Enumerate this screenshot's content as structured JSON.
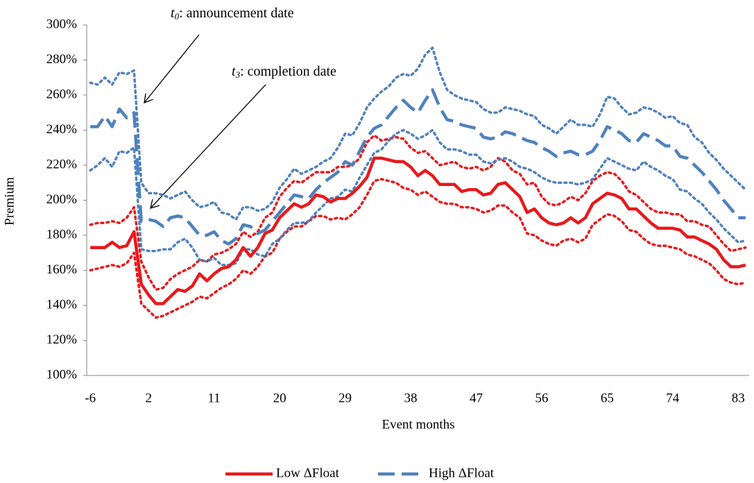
{
  "chart_data": {
    "type": "line",
    "y_label": "Premium",
    "x_label": "Event months",
    "annotations": [
      {
        "text": "t",
        "sub": "0",
        "rest": ": announcement date"
      },
      {
        "text": "t",
        "sub": "3",
        "rest": ": completion date"
      }
    ],
    "x": [
      -6,
      -5,
      -4,
      -3,
      -2,
      -1,
      0,
      1,
      2,
      3,
      4,
      5,
      6,
      7,
      8,
      9,
      10,
      11,
      12,
      13,
      14,
      15,
      16,
      17,
      18,
      19,
      20,
      21,
      22,
      23,
      24,
      25,
      26,
      27,
      28,
      29,
      30,
      31,
      32,
      33,
      34,
      35,
      36,
      37,
      38,
      39,
      40,
      41,
      42,
      43,
      44,
      45,
      46,
      47,
      48,
      49,
      50,
      51,
      52,
      53,
      54,
      55,
      56,
      57,
      58,
      59,
      60,
      61,
      62,
      63,
      64,
      65,
      66,
      67,
      68,
      69,
      70,
      71,
      72,
      73,
      74,
      75,
      76,
      77,
      78,
      79,
      80,
      81,
      82,
      83,
      84
    ],
    "xlim": [
      -6.5,
      84.5
    ],
    "xticks": [
      -6,
      2,
      11,
      20,
      29,
      38,
      47,
      56,
      65,
      74,
      83
    ],
    "ylim": [
      100,
      300
    ],
    "yticks": [
      {
        "value": 100,
        "label": "100%"
      },
      {
        "value": 120,
        "label": "120%"
      },
      {
        "value": 140,
        "label": "140%"
      },
      {
        "value": 160,
        "label": "160%"
      },
      {
        "value": 180,
        "label": "180%"
      },
      {
        "value": 200,
        "label": "200%"
      },
      {
        "value": 220,
        "label": "220%"
      },
      {
        "value": 240,
        "label": "240%"
      },
      {
        "value": 260,
        "label": "260%"
      },
      {
        "value": 280,
        "label": "280%"
      },
      {
        "value": 300,
        "label": "300%"
      }
    ],
    "legend": "bottom",
    "series": [
      {
        "color": "#e8191c",
        "style": "dotted",
        "values": [
          186,
          187,
          187,
          188,
          187,
          190,
          196,
          165,
          156,
          149,
          150,
          155,
          158,
          160,
          162,
          166,
          165,
          169,
          170,
          172,
          175,
          182,
          179,
          182,
          190,
          193,
          202,
          207,
          211,
          210,
          213,
          216,
          216,
          216,
          219,
          219,
          220,
          224,
          233,
          237,
          234,
          235,
          236,
          235,
          230,
          227,
          228,
          224,
          220,
          221,
          222,
          219,
          218,
          219,
          217,
          219,
          224,
          222,
          217,
          215,
          209,
          210,
          202,
          198,
          197,
          199,
          202,
          200,
          204,
          211,
          214,
          216,
          215,
          211,
          205,
          203,
          199,
          195,
          193,
          193,
          192,
          192,
          188,
          188,
          186,
          185,
          180,
          175,
          171,
          172,
          173
        ]
      },
      {
        "color": "#e8191c",
        "style": "dotted",
        "values": [
          160,
          161,
          162,
          163,
          162,
          164,
          170,
          141,
          137,
          133,
          134,
          136,
          138,
          140,
          142,
          145,
          144,
          147,
          150,
          152,
          155,
          160,
          158,
          162,
          168,
          170,
          178,
          182,
          185,
          185,
          188,
          191,
          191,
          189,
          190,
          189,
          192,
          196,
          203,
          211,
          212,
          211,
          210,
          207,
          206,
          203,
          205,
          202,
          199,
          198,
          198,
          196,
          196,
          195,
          193,
          194,
          197,
          197,
          193,
          190,
          181,
          180,
          177,
          175,
          174,
          177,
          178,
          176,
          178,
          186,
          189,
          192,
          191,
          188,
          183,
          182,
          178,
          175,
          174,
          174,
          173,
          172,
          169,
          168,
          166,
          164,
          160,
          155,
          153,
          152,
          153
        ]
      },
      {
        "color": "#4f81bd",
        "style": "dotted",
        "values": [
          267,
          266,
          270,
          266,
          273,
          272,
          274,
          210,
          204,
          204,
          203,
          201,
          203,
          205,
          200,
          196,
          197,
          199,
          193,
          192,
          189,
          196,
          196,
          194,
          195,
          199,
          207,
          212,
          218,
          215,
          217,
          219,
          222,
          224,
          230,
          238,
          237,
          244,
          253,
          258,
          262,
          265,
          270,
          272,
          271,
          275,
          283,
          287,
          273,
          263,
          260,
          258,
          257,
          256,
          252,
          250,
          250,
          253,
          252,
          251,
          249,
          248,
          243,
          241,
          238,
          242,
          246,
          243,
          243,
          242,
          249,
          259,
          258,
          253,
          249,
          250,
          253,
          252,
          250,
          247,
          248,
          244,
          243,
          236,
          233,
          227,
          223,
          218,
          214,
          210,
          206
        ]
      },
      {
        "color": "#4f81bd",
        "style": "dotted",
        "values": [
          217,
          220,
          224,
          219,
          228,
          227,
          230,
          172,
          171,
          171,
          172,
          172,
          176,
          178,
          173,
          166,
          165,
          167,
          163,
          163,
          164,
          172,
          172,
          169,
          168,
          175,
          178,
          183,
          187,
          187,
          188,
          193,
          197,
          201,
          202,
          206,
          205,
          213,
          220,
          227,
          229,
          234,
          238,
          240,
          238,
          235,
          237,
          240,
          233,
          229,
          229,
          228,
          226,
          226,
          222,
          221,
          223,
          224,
          222,
          219,
          218,
          216,
          213,
          211,
          210,
          210,
          210,
          209,
          210,
          212,
          218,
          224,
          222,
          220,
          218,
          217,
          222,
          219,
          217,
          214,
          212,
          206,
          205,
          201,
          198,
          193,
          189,
          184,
          180,
          176,
          177
        ]
      },
      {
        "name": "Low ΔFloat",
        "color": "#e8191c",
        "style": "solid",
        "values": [
          173,
          173,
          173,
          176,
          173,
          174,
          182,
          152,
          146,
          141,
          141,
          145,
          149,
          148,
          151,
          158,
          154,
          158,
          161,
          162,
          166,
          173,
          168,
          173,
          181,
          183,
          190,
          194,
          198,
          196,
          198,
          203,
          202,
          199,
          201,
          201,
          204,
          208,
          213,
          224,
          224,
          223,
          222,
          222,
          219,
          214,
          217,
          214,
          209,
          209,
          209,
          205,
          206,
          206,
          203,
          204,
          209,
          210,
          206,
          202,
          193,
          195,
          190,
          187,
          186,
          187,
          190,
          187,
          190,
          198,
          201,
          204,
          203,
          201,
          195,
          195,
          191,
          187,
          184,
          184,
          184,
          183,
          179,
          179,
          177,
          175,
          172,
          166,
          162,
          162,
          163
        ]
      },
      {
        "name": "High ΔFloat",
        "color": "#4f81bd",
        "style": "dashed",
        "values": [
          242,
          242,
          248,
          242,
          252,
          247,
          250,
          188,
          189,
          188,
          185,
          190,
          191,
          190,
          185,
          180,
          180,
          182,
          177,
          175,
          178,
          186,
          185,
          181,
          183,
          188,
          193,
          198,
          203,
          202,
          201,
          206,
          210,
          213,
          216,
          222,
          220,
          228,
          236,
          241,
          243,
          248,
          253,
          257,
          253,
          250,
          257,
          263,
          253,
          246,
          245,
          243,
          242,
          241,
          236,
          235,
          236,
          239,
          238,
          236,
          234,
          233,
          230,
          228,
          225,
          227,
          228,
          226,
          226,
          228,
          234,
          242,
          240,
          238,
          234,
          233,
          238,
          236,
          234,
          231,
          231,
          225,
          224,
          220,
          216,
          211,
          206,
          200,
          195,
          190,
          190
        ]
      }
    ]
  }
}
